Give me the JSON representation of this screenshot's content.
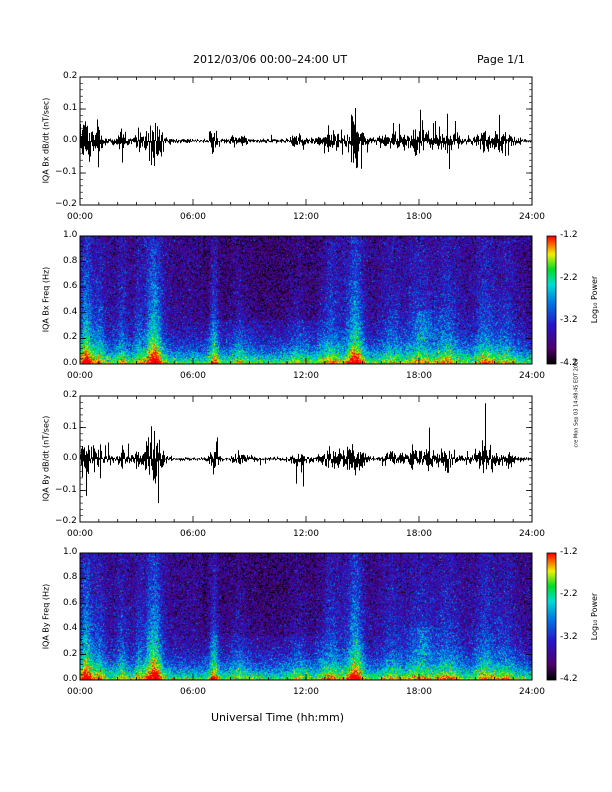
{
  "header": {
    "title": "2012/03/06  00:00–24:00 UT",
    "page": "Page 1/1"
  },
  "footer": {
    "xlabel": "Universal Time (hh:mm)",
    "side_note": "cre Mon Sep 03 14:48:45 EDT 2018"
  },
  "chart_data": [
    {
      "type": "line",
      "ylabel": "IQA Bx dB/dt (nT/sec)",
      "ylim": [
        -0.2,
        0.2
      ],
      "yticks": [
        "0.2",
        "0.1",
        "0.0",
        "−0.1",
        "−0.2"
      ],
      "xticks": [
        "00:00",
        "06:00",
        "12:00",
        "18:00",
        "24:00"
      ],
      "xlim_hours": [
        0,
        24
      ]
    },
    {
      "type": "heatmap",
      "ylabel": "IQA Bx Freq (Hz)",
      "ylim": [
        0.0,
        1.0
      ],
      "yticks": [
        "1.0",
        "0.8",
        "0.6",
        "0.4",
        "0.2",
        "0.0"
      ],
      "xticks": [
        "00:00",
        "06:00",
        "12:00",
        "18:00",
        "24:00"
      ],
      "colorbar": {
        "label": "Log₁₀ Power",
        "ticks": [
          "-1.2",
          "-2.2",
          "-3.2",
          "-4.2"
        ],
        "range": [
          -4.2,
          -1.2
        ]
      }
    },
    {
      "type": "line",
      "ylabel": "IQA By dB/dt (nT/sec)",
      "ylim": [
        -0.2,
        0.2
      ],
      "yticks": [
        "0.2",
        "0.1",
        "0.0",
        "−0.1",
        "−0.2"
      ],
      "xticks": [
        "00:00",
        "06:00",
        "12:00",
        "18:00",
        "24:00"
      ],
      "xlim_hours": [
        0,
        24
      ]
    },
    {
      "type": "heatmap",
      "ylabel": "IQA By Freq (Hz)",
      "ylim": [
        0.0,
        1.0
      ],
      "yticks": [
        "1.0",
        "0.8",
        "0.6",
        "0.4",
        "0.2",
        "0.0"
      ],
      "xticks": [
        "00:00",
        "06:00",
        "12:00",
        "18:00",
        "24:00"
      ],
      "colorbar": {
        "label": "Log₁₀ Power",
        "ticks": [
          "-1.2",
          "-2.2",
          "-3.2",
          "-4.2"
        ],
        "range": [
          -4.2,
          -1.2
        ]
      }
    }
  ]
}
